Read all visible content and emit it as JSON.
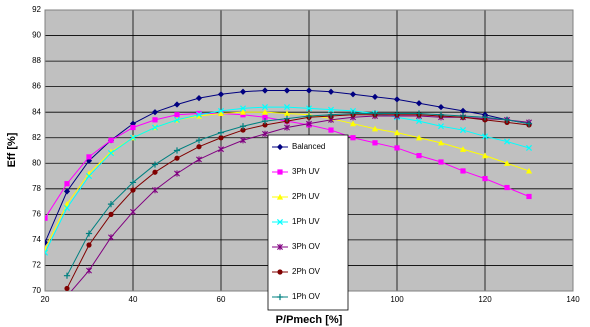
{
  "chart_data": {
    "type": "line",
    "x_label": "P/Pmech [%]",
    "y_label": "Eff [%]",
    "x": [
      20,
      25,
      30,
      35,
      40,
      45,
      50,
      55,
      60,
      65,
      70,
      75,
      80,
      85,
      90,
      95,
      100,
      105,
      110,
      115,
      120,
      125,
      130
    ],
    "xlim": [
      20,
      140
    ],
    "xticks": [
      20,
      40,
      60,
      80,
      100,
      120,
      140
    ],
    "ylim": [
      70,
      92
    ],
    "yticks": [
      70,
      72,
      74,
      76,
      78,
      80,
      82,
      84,
      86,
      88,
      90,
      92
    ],
    "grid": true,
    "legend": "bottom",
    "series": [
      {
        "name": "Balanced",
        "color": "#000080",
        "marker": "diamond",
        "values": [
          73.8,
          77.8,
          80.2,
          81.8,
          83.1,
          84.0,
          84.6,
          85.1,
          85.4,
          85.6,
          85.7,
          85.7,
          85.7,
          85.6,
          85.4,
          85.2,
          85.0,
          84.7,
          84.4,
          84.1,
          83.8,
          83.4,
          83.1
        ]
      },
      {
        "name": "3Ph UV",
        "color": "#ff00ff",
        "marker": "square",
        "values": [
          75.7,
          78.4,
          80.5,
          81.8,
          82.8,
          83.4,
          83.8,
          83.9,
          83.9,
          83.8,
          83.6,
          83.3,
          83.0,
          82.6,
          82.0,
          81.6,
          81.2,
          80.6,
          80.1,
          79.4,
          78.8,
          78.1,
          77.4
        ]
      },
      {
        "name": "2Ph UV",
        "color": "#ffff00",
        "marker": "triangle",
        "values": [
          73.3,
          76.8,
          79.2,
          80.9,
          82.0,
          82.8,
          83.4,
          83.7,
          83.9,
          84.0,
          84.0,
          83.9,
          83.8,
          83.5,
          83.1,
          82.7,
          82.4,
          82.0,
          81.6,
          81.1,
          80.6,
          80.0,
          79.4
        ]
      },
      {
        "name": "1Ph UV",
        "color": "#00ffff",
        "marker": "x",
        "values": [
          73.0,
          76.5,
          79.0,
          80.8,
          82.0,
          82.8,
          83.4,
          83.8,
          84.1,
          84.3,
          84.4,
          84.4,
          84.3,
          84.2,
          84.1,
          83.9,
          83.6,
          83.3,
          82.9,
          82.6,
          82.1,
          81.7,
          81.2
        ]
      },
      {
        "name": "3Ph OV",
        "color": "#800080",
        "marker": "star",
        "values": [
          null,
          69.6,
          71.6,
          74.2,
          76.2,
          77.9,
          79.2,
          80.3,
          81.1,
          81.8,
          82.3,
          82.8,
          83.1,
          83.4,
          83.6,
          83.7,
          83.7,
          83.7,
          83.6,
          83.6,
          83.5,
          83.4,
          83.2
        ]
      },
      {
        "name": "2Ph OV",
        "color": "#800000",
        "marker": "circle",
        "values": [
          null,
          70.2,
          73.6,
          76.0,
          77.9,
          79.3,
          80.4,
          81.3,
          82.0,
          82.6,
          83.0,
          83.3,
          83.6,
          83.7,
          83.8,
          83.8,
          83.8,
          83.8,
          83.7,
          83.6,
          83.4,
          83.2,
          83.0
        ]
      },
      {
        "name": "1Ph OV",
        "color": "#008080",
        "marker": "plus",
        "values": [
          null,
          71.2,
          74.5,
          76.8,
          78.5,
          79.9,
          81.0,
          81.8,
          82.4,
          82.9,
          83.3,
          83.5,
          83.7,
          83.8,
          83.9,
          83.9,
          83.9,
          83.9,
          83.8,
          83.7,
          83.6,
          83.4,
          83.1
        ]
      }
    ]
  }
}
